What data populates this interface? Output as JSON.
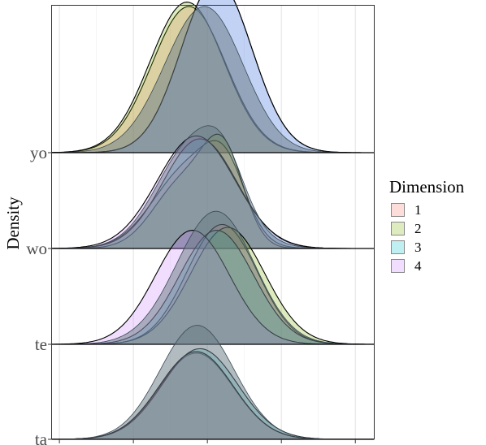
{
  "chart_data": {
    "type": "area",
    "subtype": "ridgeline-density",
    "title": "",
    "xlabel": "",
    "ylabel": "Density",
    "x_domain": [
      -4.2,
      4.5
    ],
    "x_ticks": [
      -4,
      -2,
      0,
      2,
      4
    ],
    "x_tick_labels_visible": false,
    "grid": true,
    "legend": {
      "title": "Dimension",
      "position": "right",
      "entries": [
        "1",
        "2",
        "3",
        "4"
      ]
    },
    "ridges": [
      {
        "label": "ta",
        "combined_height": 0.78,
        "series": [
          {
            "name": "1",
            "color": "#F8766D",
            "peaks": [
              [
                -0.3,
                0.59,
                1.0
              ]
            ]
          },
          {
            "name": "2",
            "color": "#7CAE00",
            "peaks": [
              [
                -0.3,
                0.6,
                1.0
              ]
            ]
          },
          {
            "name": "3",
            "color": "#00BFC4",
            "peaks": [
              [
                -0.2,
                0.62,
                1.02
              ]
            ]
          },
          {
            "name": "4",
            "color": "#C77CFF",
            "peaks": [
              [
                -0.3,
                0.6,
                1.0
              ]
            ]
          }
        ]
      },
      {
        "label": "te",
        "combined_height": 0.91,
        "series": [
          {
            "name": "1",
            "color": "#F8766D",
            "peaks": [
              [
                0.4,
                0.82,
                0.95
              ]
            ]
          },
          {
            "name": "2",
            "color": "#7CAE00",
            "peaks": [
              [
                0.55,
                0.8,
                1.0
              ]
            ]
          },
          {
            "name": "3",
            "color": "#00BFC4",
            "peaks": [
              [
                0.25,
                0.78,
                1.0
              ]
            ]
          },
          {
            "name": "4",
            "color": "#C77CFF",
            "peaks": [
              [
                -0.4,
                0.78,
                1.0
              ]
            ]
          }
        ]
      },
      {
        "label": "wo",
        "combined_height": 0.84,
        "series": [
          {
            "name": "1",
            "color": "#F8766D",
            "peaks": [
              [
                -0.5,
                0.55,
                0.95
              ],
              [
                0.5,
                0.37,
                0.55
              ]
            ]
          },
          {
            "name": "2",
            "color": "#7CAE00",
            "peaks": [
              [
                -0.65,
                0.45,
                0.8
              ],
              [
                0.45,
                0.58,
                0.55
              ]
            ]
          },
          {
            "name": "3",
            "color": "#00BFC4",
            "peaks": [
              [
                -0.2,
                0.75,
                1.0
              ]
            ]
          },
          {
            "name": "4",
            "color": "#C77CFF",
            "peaks": [
              [
                -0.3,
                0.77,
                1.05
              ]
            ]
          }
        ]
      },
      {
        "label": "yo",
        "combined_height": 1.0,
        "series": [
          {
            "name": "1",
            "color": "#F8766D",
            "peaks": [
              [
                -0.5,
                1.0,
                1.0
              ]
            ]
          },
          {
            "name": "2",
            "color": "#7CAE00",
            "peaks": [
              [
                -0.55,
                1.03,
                1.0
              ]
            ]
          },
          {
            "name": "3",
            "color": "#00BFC4",
            "peaks": [
              [
                0.25,
                1.18,
                0.95
              ]
            ]
          },
          {
            "name": "4",
            "color": "#C77CFF",
            "peaks": [
              [
                0.25,
                1.18,
                0.95
              ]
            ]
          }
        ]
      }
    ]
  }
}
